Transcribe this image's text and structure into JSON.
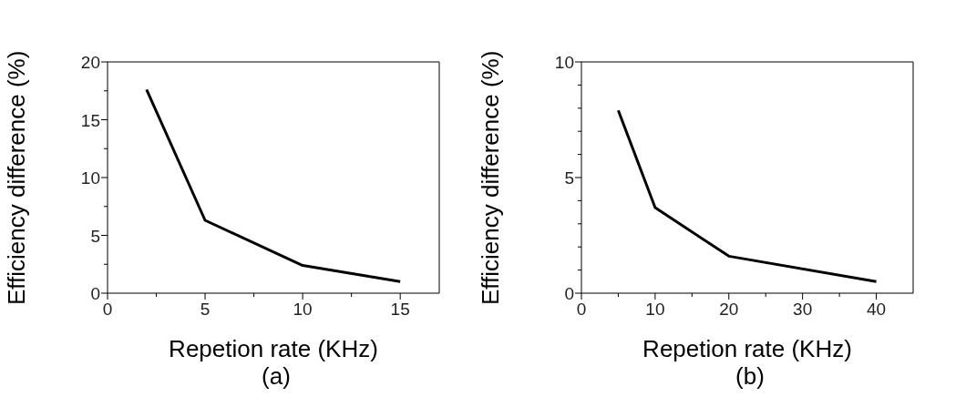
{
  "chart_data": [
    {
      "type": "line",
      "xlabel": "Repetion rate (KHz)",
      "ylabel": "Efficiency difference (%)",
      "annotations": [
        "(a)"
      ],
      "x": [
        2,
        5,
        10,
        15
      ],
      "series": [
        {
          "color": "#000000",
          "values": [
            17.6,
            6.3,
            2.4,
            1.0
          ]
        }
      ],
      "xlim": [
        0,
        17
      ],
      "xticks": [
        0,
        {
          "value": 2.5,
          "label": null
        },
        5,
        {
          "value": 7.5,
          "label": null
        },
        10,
        {
          "value": 12.5,
          "label": null
        },
        15
      ],
      "ylim": [
        0,
        20
      ],
      "yticks": [
        0,
        {
          "value": 2.5,
          "label": null
        },
        5,
        {
          "value": 7.5,
          "label": null
        },
        10,
        {
          "value": 12.5,
          "label": null
        },
        15,
        {
          "value": 17.5,
          "label": null
        },
        20
      ],
      "grid": false,
      "legend": false,
      "marker": "none",
      "line_style": "solid"
    },
    {
      "type": "line",
      "xlabel": "Repetion rate (KHz)",
      "ylabel": "Efficiency difference (%)",
      "annotations": [
        "(b)"
      ],
      "x": [
        5,
        10,
        20,
        40
      ],
      "series": [
        {
          "color": "#000000",
          "values": [
            7.9,
            3.7,
            1.6,
            0.5
          ]
        }
      ],
      "xlim": [
        0,
        45
      ],
      "xticks": [
        0,
        {
          "value": 5,
          "label": null
        },
        10,
        {
          "value": 15,
          "label": null
        },
        20,
        {
          "value": 25,
          "label": null
        },
        30,
        {
          "value": 35,
          "label": null
        },
        40
      ],
      "ylim": [
        0,
        10
      ],
      "yticks": [
        0,
        {
          "value": 1,
          "label": null
        },
        {
          "value": 2,
          "label": null
        },
        {
          "value": 3,
          "label": null
        },
        {
          "value": 4,
          "label": null
        },
        5,
        {
          "value": 6,
          "label": null
        },
        {
          "value": 7,
          "label": null
        },
        {
          "value": 8,
          "label": null
        },
        {
          "value": 9,
          "label": null
        },
        10
      ],
      "grid": false,
      "legend": false,
      "marker": "none",
      "line_style": "solid"
    }
  ]
}
